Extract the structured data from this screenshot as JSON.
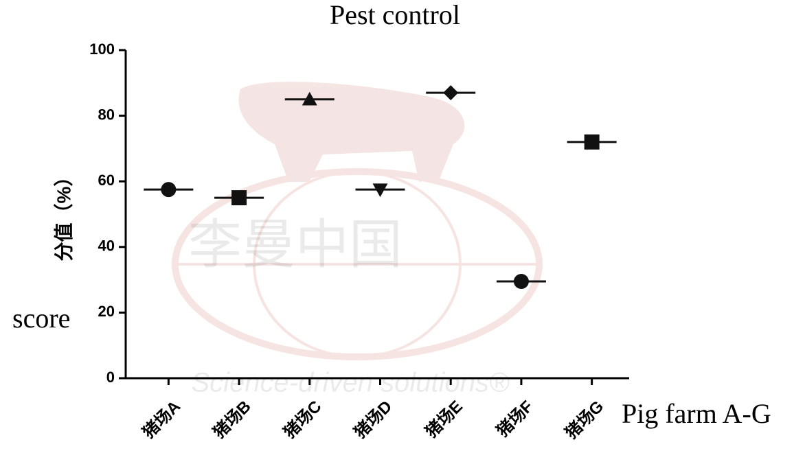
{
  "chart_data": {
    "type": "dot",
    "title": "Pest control",
    "y_label": "分值（%）",
    "y_annotation": "score",
    "x_annotation": "Pig farm A-G",
    "watermark": [
      "李曼中国",
      "Science-driven solutions®"
    ],
    "categories": [
      "猪场A",
      "猪场B",
      "猪场C",
      "猪场D",
      "猪场E",
      "猪场F",
      "猪场G"
    ],
    "values": [
      57.5,
      55,
      85,
      57.5,
      87,
      29.5,
      72
    ],
    "markers": [
      "circle",
      "square",
      "triangle",
      "triangle-down",
      "diamond",
      "circle",
      "square"
    ],
    "color": "#111111",
    "ylim": [
      0,
      100
    ],
    "yticks": [
      0,
      20,
      40,
      60,
      80,
      100
    ]
  }
}
